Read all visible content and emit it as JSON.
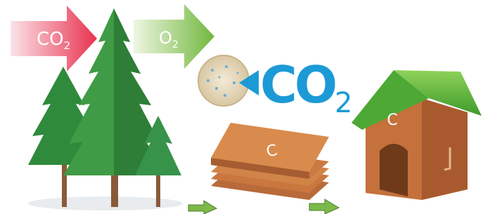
{
  "arrows": [
    {
      "label": "CO",
      "subscript": "2"
    },
    {
      "label": "O",
      "subscript": "2"
    }
  ],
  "absorption": {
    "label": "CO",
    "subscript": "2"
  },
  "lumber": {
    "label": "C"
  },
  "house": {
    "label": "C"
  }
}
